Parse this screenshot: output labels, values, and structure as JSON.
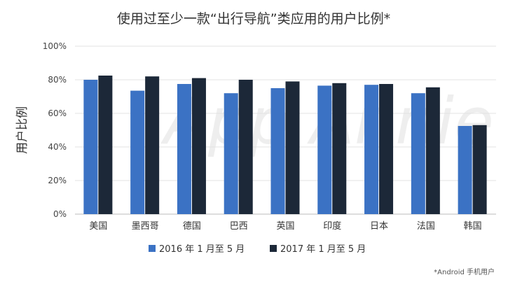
{
  "chart_data": {
    "type": "bar",
    "title": "使用过至少一款“出行导航”类应用的用户比例*",
    "ylabel": "用户比例",
    "xlabel": "",
    "ylim": [
      0,
      100
    ],
    "yticks": [
      "0%",
      "20%",
      "40%",
      "60%",
      "80%",
      "100%"
    ],
    "categories": [
      "美国",
      "墨西哥",
      "德国",
      "巴西",
      "英国",
      "印度",
      "日本",
      "法国",
      "韩国"
    ],
    "series": [
      {
        "name": "2016 年 1 月至 5 月",
        "color": "#3b72c4",
        "values": [
          80,
          73.5,
          77.5,
          72,
          75,
          76.5,
          77,
          72,
          52.5
        ]
      },
      {
        "name": "2017 年 1 月至 5 月",
        "color": "#1c2838",
        "values": [
          82.5,
          82,
          81,
          80,
          79,
          78,
          77.5,
          75.5,
          53
        ]
      }
    ],
    "grid": true,
    "legend_position": "bottom-center",
    "footnote": "*Android 手机用户",
    "watermark": "App Annie"
  }
}
